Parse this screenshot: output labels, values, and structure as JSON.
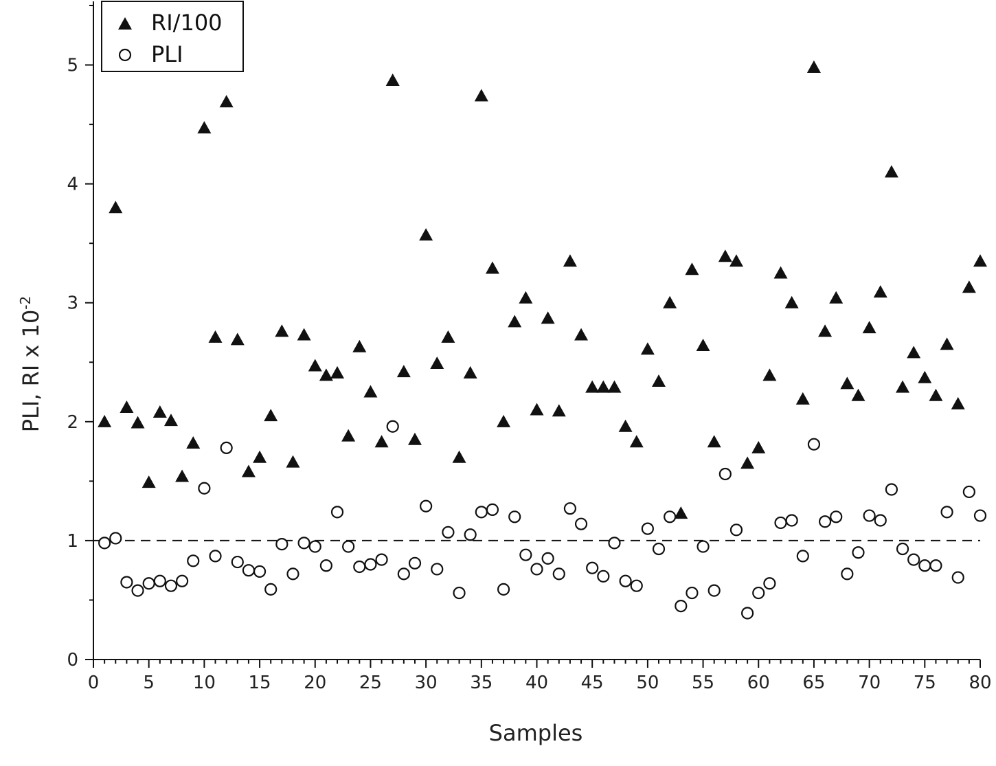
{
  "chart_data": {
    "type": "scatter",
    "xlabel": "Samples",
    "ylabel": "PLI, RI x 10",
    "ylabel_exponent": "-2",
    "xlim": [
      0,
      80
    ],
    "ylim": [
      0,
      5.5
    ],
    "xticks": [
      0,
      5,
      10,
      15,
      20,
      25,
      30,
      35,
      40,
      45,
      50,
      55,
      60,
      65,
      70,
      75,
      80
    ],
    "yticks": [
      0,
      1,
      2,
      3,
      4,
      5
    ],
    "reference_line": {
      "y": 1,
      "style": "dashed"
    },
    "legend": {
      "position": "top-left"
    },
    "grid": false,
    "series": [
      {
        "name": "RI/100",
        "marker": "filled-triangle",
        "x": [
          1,
          2,
          3,
          4,
          5,
          6,
          7,
          8,
          9,
          10,
          11,
          12,
          13,
          14,
          15,
          16,
          17,
          18,
          19,
          20,
          21,
          22,
          23,
          24,
          25,
          26,
          27,
          28,
          29,
          30,
          31,
          32,
          33,
          34,
          35,
          36,
          37,
          38,
          39,
          40,
          41,
          42,
          43,
          44,
          45,
          46,
          47,
          48,
          49,
          50,
          51,
          52,
          53,
          54,
          55,
          56,
          57,
          58,
          59,
          60,
          61,
          62,
          63,
          64,
          65,
          66,
          67,
          68,
          69,
          70,
          71,
          72,
          73,
          74,
          75,
          76,
          77,
          78,
          79,
          80
        ],
        "y": [
          2.0,
          3.8,
          2.12,
          1.99,
          1.49,
          2.08,
          2.01,
          1.54,
          1.82,
          4.47,
          2.71,
          4.69,
          2.69,
          1.58,
          1.7,
          2.05,
          2.76,
          1.66,
          2.73,
          2.47,
          2.39,
          2.41,
          1.88,
          2.63,
          2.25,
          1.83,
          4.87,
          2.42,
          1.85,
          3.57,
          2.49,
          2.71,
          1.7,
          2.41,
          4.74,
          3.29,
          2.0,
          2.84,
          3.04,
          2.1,
          2.87,
          2.09,
          3.35,
          2.73,
          2.29,
          2.29,
          2.29,
          1.96,
          1.83,
          2.61,
          2.34,
          3.0,
          1.23,
          3.28,
          2.64,
          1.83,
          3.39,
          3.35,
          1.65,
          1.78,
          2.39,
          3.25,
          3.0,
          2.19,
          4.98,
          2.76,
          3.04,
          2.32,
          2.22,
          2.79,
          3.09,
          4.1,
          2.29,
          2.58,
          2.37,
          2.22,
          2.65,
          2.15,
          3.13,
          3.35
        ]
      },
      {
        "name": "PLI",
        "marker": "open-circle",
        "x": [
          1,
          2,
          3,
          4,
          5,
          6,
          7,
          8,
          9,
          10,
          11,
          12,
          13,
          14,
          15,
          16,
          17,
          18,
          19,
          20,
          21,
          22,
          23,
          24,
          25,
          26,
          27,
          28,
          29,
          30,
          31,
          32,
          33,
          34,
          35,
          36,
          37,
          38,
          39,
          40,
          41,
          42,
          43,
          44,
          45,
          46,
          47,
          48,
          49,
          50,
          51,
          52,
          53,
          54,
          55,
          56,
          57,
          58,
          59,
          60,
          61,
          62,
          63,
          64,
          65,
          66,
          67,
          68,
          69,
          70,
          71,
          72,
          73,
          74,
          75,
          76,
          77,
          78,
          79,
          80
        ],
        "y": [
          0.98,
          1.02,
          0.65,
          0.58,
          0.64,
          0.66,
          0.62,
          0.66,
          0.83,
          1.44,
          0.87,
          1.78,
          0.82,
          0.75,
          0.74,
          0.59,
          0.97,
          0.72,
          0.98,
          0.95,
          0.79,
          1.24,
          0.95,
          0.78,
          0.8,
          0.84,
          1.96,
          0.72,
          0.81,
          1.29,
          0.76,
          1.07,
          0.56,
          1.05,
          1.24,
          1.26,
          0.59,
          1.2,
          0.88,
          0.76,
          0.85,
          0.72,
          1.27,
          1.14,
          0.77,
          0.7,
          0.98,
          0.66,
          0.62,
          1.1,
          0.93,
          1.2,
          0.45,
          0.56,
          0.95,
          0.58,
          1.56,
          1.09,
          0.39,
          0.56,
          0.64,
          1.15,
          1.17,
          0.87,
          1.81,
          1.16,
          1.2,
          0.72,
          0.9,
          1.21,
          1.17,
          1.43,
          0.93,
          0.84,
          0.79,
          0.79,
          1.24,
          0.69,
          1.41,
          1.21
        ]
      }
    ]
  }
}
